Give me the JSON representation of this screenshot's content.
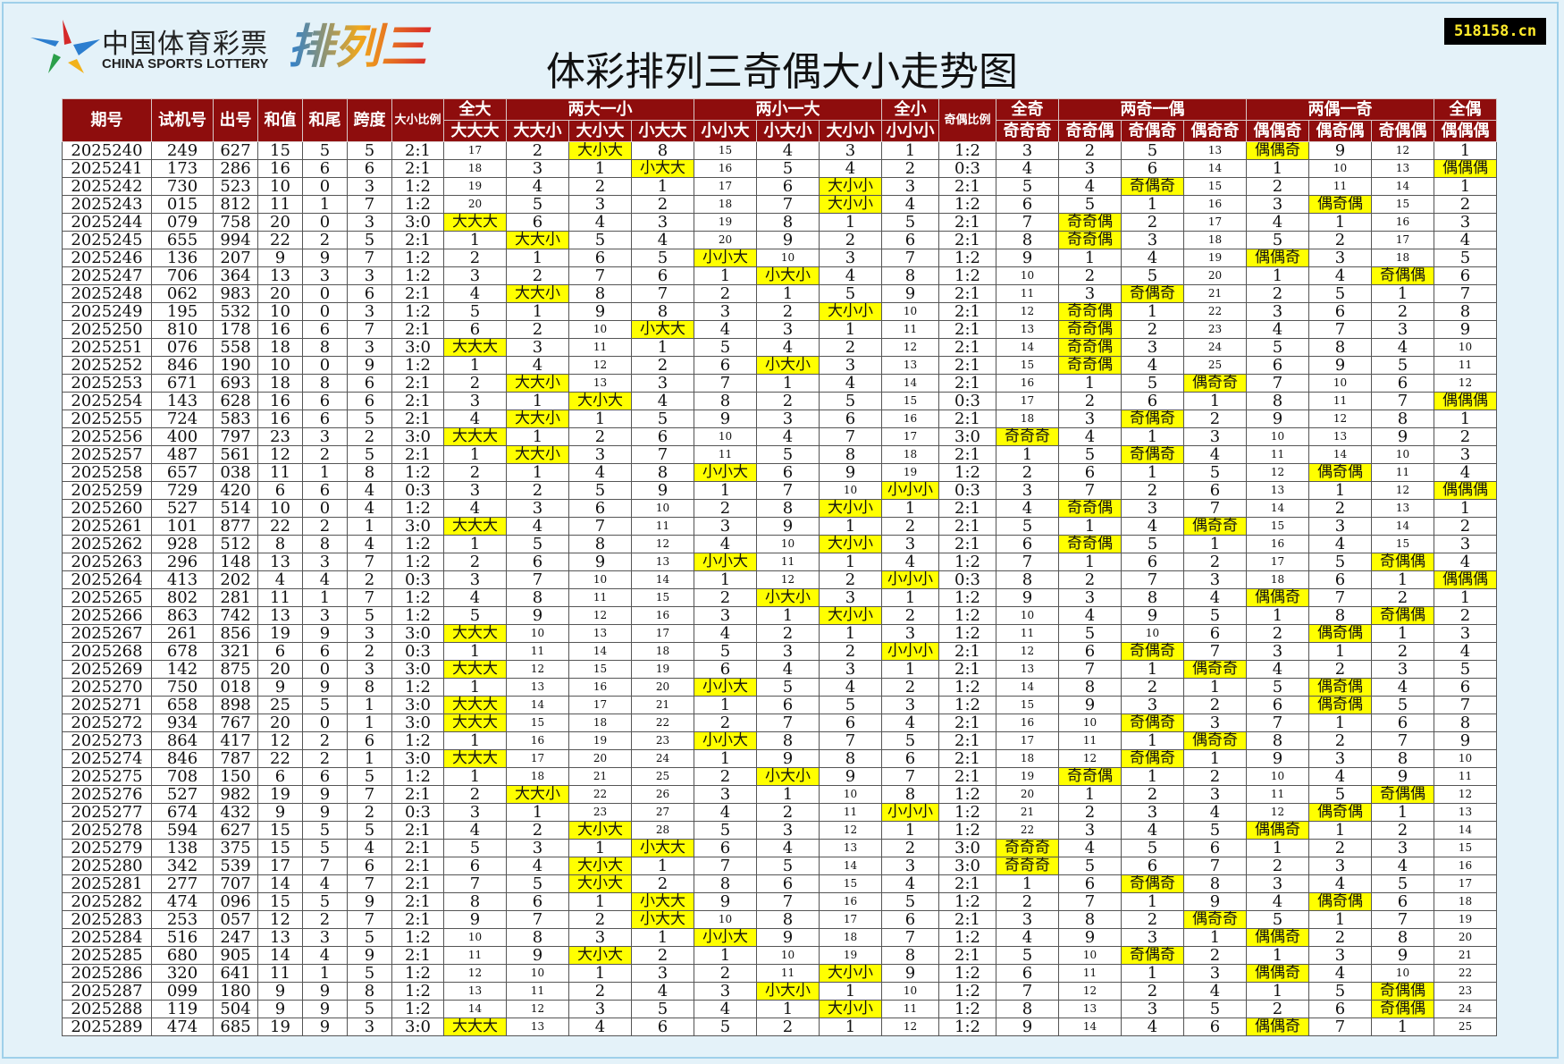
{
  "header": {
    "logo": {
      "cn": "中国体育彩票",
      "en": "CHINA SPORTS LOTTERY",
      "game": "排列三"
    },
    "title": "体彩排列三奇偶大小走势图",
    "site": "518158.cn"
  },
  "table": {
    "header_top": [
      "期号",
      "试机号",
      "出号",
      "和值",
      "和尾",
      "跨度",
      "大小比例",
      "全大",
      "两大一小",
      "两小一大",
      "全小",
      "奇偶比例",
      "全奇",
      "两奇一偶",
      "两偶一奇",
      "全偶"
    ],
    "header_sub": [
      "大大大",
      "大大小",
      "大小大",
      "小大大",
      "小小大",
      "小大小",
      "大小小",
      "小小小",
      "奇奇奇",
      "奇奇偶",
      "奇偶奇",
      "偶奇奇",
      "偶偶奇",
      "偶奇偶",
      "奇偶偶",
      "偶偶偶"
    ],
    "rows": [
      [
        "2025240",
        "249",
        "627",
        "15",
        "5",
        "5",
        "2:1",
        "17",
        "2",
        "大小大",
        "8",
        "15",
        "4",
        "3",
        "1",
        "1:2",
        "3",
        "2",
        "5",
        "13",
        "偶偶奇",
        "9",
        "12",
        "1"
      ],
      [
        "2025241",
        "173",
        "286",
        "16",
        "6",
        "6",
        "2:1",
        "18",
        "3",
        "1",
        "小大大",
        "16",
        "5",
        "4",
        "2",
        "0:3",
        "4",
        "3",
        "6",
        "14",
        "1",
        "10",
        "13",
        "偶偶偶"
      ],
      [
        "2025242",
        "730",
        "523",
        "10",
        "0",
        "3",
        "1:2",
        "19",
        "4",
        "2",
        "1",
        "17",
        "6",
        "大小小",
        "3",
        "2:1",
        "5",
        "4",
        "奇偶奇",
        "15",
        "2",
        "11",
        "14",
        "1"
      ],
      [
        "2025243",
        "015",
        "812",
        "11",
        "1",
        "7",
        "1:2",
        "20",
        "5",
        "3",
        "2",
        "18",
        "7",
        "大小小",
        "4",
        "1:2",
        "6",
        "5",
        "1",
        "16",
        "3",
        "偶奇偶",
        "15",
        "2"
      ],
      [
        "2025244",
        "079",
        "758",
        "20",
        "0",
        "3",
        "3:0",
        "大大大",
        "6",
        "4",
        "3",
        "19",
        "8",
        "1",
        "5",
        "2:1",
        "7",
        "奇奇偶",
        "2",
        "17",
        "4",
        "1",
        "16",
        "3"
      ],
      [
        "2025245",
        "655",
        "994",
        "22",
        "2",
        "5",
        "2:1",
        "1",
        "大大小",
        "5",
        "4",
        "20",
        "9",
        "2",
        "6",
        "2:1",
        "8",
        "奇奇偶",
        "3",
        "18",
        "5",
        "2",
        "17",
        "4"
      ],
      [
        "2025246",
        "136",
        "207",
        "9",
        "9",
        "7",
        "1:2",
        "2",
        "1",
        "6",
        "5",
        "小小大",
        "10",
        "3",
        "7",
        "1:2",
        "9",
        "1",
        "4",
        "19",
        "偶偶奇",
        "3",
        "18",
        "5"
      ],
      [
        "2025247",
        "706",
        "364",
        "13",
        "3",
        "3",
        "1:2",
        "3",
        "2",
        "7",
        "6",
        "1",
        "小大小",
        "4",
        "8",
        "1:2",
        "10",
        "2",
        "5",
        "20",
        "1",
        "4",
        "奇偶偶",
        "6"
      ],
      [
        "2025248",
        "062",
        "983",
        "20",
        "0",
        "6",
        "2:1",
        "4",
        "大大小",
        "8",
        "7",
        "2",
        "1",
        "5",
        "9",
        "2:1",
        "11",
        "3",
        "奇偶奇",
        "21",
        "2",
        "5",
        "1",
        "7"
      ],
      [
        "2025249",
        "195",
        "532",
        "10",
        "0",
        "3",
        "1:2",
        "5",
        "1",
        "9",
        "8",
        "3",
        "2",
        "大小小",
        "10",
        "2:1",
        "12",
        "奇奇偶",
        "1",
        "22",
        "3",
        "6",
        "2",
        "8"
      ],
      [
        "2025250",
        "810",
        "178",
        "16",
        "6",
        "7",
        "2:1",
        "6",
        "2",
        "10",
        "小大大",
        "4",
        "3",
        "1",
        "11",
        "2:1",
        "13",
        "奇奇偶",
        "2",
        "23",
        "4",
        "7",
        "3",
        "9"
      ],
      [
        "2025251",
        "076",
        "558",
        "18",
        "8",
        "3",
        "3:0",
        "大大大",
        "3",
        "11",
        "1",
        "5",
        "4",
        "2",
        "12",
        "2:1",
        "14",
        "奇奇偶",
        "3",
        "24",
        "5",
        "8",
        "4",
        "10"
      ],
      [
        "2025252",
        "846",
        "190",
        "10",
        "0",
        "9",
        "1:2",
        "1",
        "4",
        "12",
        "2",
        "6",
        "小大小",
        "3",
        "13",
        "2:1",
        "15",
        "奇奇偶",
        "4",
        "25",
        "6",
        "9",
        "5",
        "11"
      ],
      [
        "2025253",
        "671",
        "693",
        "18",
        "8",
        "6",
        "2:1",
        "2",
        "大大小",
        "13",
        "3",
        "7",
        "1",
        "4",
        "14",
        "2:1",
        "16",
        "1",
        "5",
        "偶奇奇",
        "7",
        "10",
        "6",
        "12"
      ],
      [
        "2025254",
        "143",
        "628",
        "16",
        "6",
        "6",
        "2:1",
        "3",
        "1",
        "大小大",
        "4",
        "8",
        "2",
        "5",
        "15",
        "0:3",
        "17",
        "2",
        "6",
        "1",
        "8",
        "11",
        "7",
        "偶偶偶"
      ],
      [
        "2025255",
        "724",
        "583",
        "16",
        "6",
        "5",
        "2:1",
        "4",
        "大大小",
        "1",
        "5",
        "9",
        "3",
        "6",
        "16",
        "2:1",
        "18",
        "3",
        "奇偶奇",
        "2",
        "9",
        "12",
        "8",
        "1"
      ],
      [
        "2025256",
        "400",
        "797",
        "23",
        "3",
        "2",
        "3:0",
        "大大大",
        "1",
        "2",
        "6",
        "10",
        "4",
        "7",
        "17",
        "3:0",
        "奇奇奇",
        "4",
        "1",
        "3",
        "10",
        "13",
        "9",
        "2"
      ],
      [
        "2025257",
        "487",
        "561",
        "12",
        "2",
        "5",
        "2:1",
        "1",
        "大大小",
        "3",
        "7",
        "11",
        "5",
        "8",
        "18",
        "2:1",
        "1",
        "5",
        "奇偶奇",
        "4",
        "11",
        "14",
        "10",
        "3"
      ],
      [
        "2025258",
        "657",
        "038",
        "11",
        "1",
        "8",
        "1:2",
        "2",
        "1",
        "4",
        "8",
        "小小大",
        "6",
        "9",
        "19",
        "1:2",
        "2",
        "6",
        "1",
        "5",
        "12",
        "偶奇偶",
        "11",
        "4"
      ],
      [
        "2025259",
        "729",
        "420",
        "6",
        "6",
        "4",
        "0:3",
        "3",
        "2",
        "5",
        "9",
        "1",
        "7",
        "10",
        "小小小",
        "0:3",
        "3",
        "7",
        "2",
        "6",
        "13",
        "1",
        "12",
        "偶偶偶"
      ],
      [
        "2025260",
        "527",
        "514",
        "10",
        "0",
        "4",
        "1:2",
        "4",
        "3",
        "6",
        "10",
        "2",
        "8",
        "大小小",
        "1",
        "2:1",
        "4",
        "奇奇偶",
        "3",
        "7",
        "14",
        "2",
        "13",
        "1"
      ],
      [
        "2025261",
        "101",
        "877",
        "22",
        "2",
        "1",
        "3:0",
        "大大大",
        "4",
        "7",
        "11",
        "3",
        "9",
        "1",
        "2",
        "2:1",
        "5",
        "1",
        "4",
        "偶奇奇",
        "15",
        "3",
        "14",
        "2"
      ],
      [
        "2025262",
        "928",
        "512",
        "8",
        "8",
        "4",
        "1:2",
        "1",
        "5",
        "8",
        "12",
        "4",
        "10",
        "大小小",
        "3",
        "2:1",
        "6",
        "奇奇偶",
        "5",
        "1",
        "16",
        "4",
        "15",
        "3"
      ],
      [
        "2025263",
        "296",
        "148",
        "13",
        "3",
        "7",
        "1:2",
        "2",
        "6",
        "9",
        "13",
        "小小大",
        "11",
        "1",
        "4",
        "1:2",
        "7",
        "1",
        "6",
        "2",
        "17",
        "5",
        "奇偶偶",
        "4"
      ],
      [
        "2025264",
        "413",
        "202",
        "4",
        "4",
        "2",
        "0:3",
        "3",
        "7",
        "10",
        "14",
        "1",
        "12",
        "2",
        "小小小",
        "0:3",
        "8",
        "2",
        "7",
        "3",
        "18",
        "6",
        "1",
        "偶偶偶"
      ],
      [
        "2025265",
        "802",
        "281",
        "11",
        "1",
        "7",
        "1:2",
        "4",
        "8",
        "11",
        "15",
        "2",
        "小大小",
        "3",
        "1",
        "1:2",
        "9",
        "3",
        "8",
        "4",
        "偶偶奇",
        "7",
        "2",
        "1"
      ],
      [
        "2025266",
        "863",
        "742",
        "13",
        "3",
        "5",
        "1:2",
        "5",
        "9",
        "12",
        "16",
        "3",
        "1",
        "大小小",
        "2",
        "1:2",
        "10",
        "4",
        "9",
        "5",
        "1",
        "8",
        "奇偶偶",
        "2"
      ],
      [
        "2025267",
        "261",
        "856",
        "19",
        "9",
        "3",
        "3:0",
        "大大大",
        "10",
        "13",
        "17",
        "4",
        "2",
        "1",
        "3",
        "1:2",
        "11",
        "5",
        "10",
        "6",
        "2",
        "偶奇偶",
        "1",
        "3"
      ],
      [
        "2025268",
        "678",
        "321",
        "6",
        "6",
        "2",
        "0:3",
        "1",
        "11",
        "14",
        "18",
        "5",
        "3",
        "2",
        "小小小",
        "2:1",
        "12",
        "6",
        "奇偶奇",
        "7",
        "3",
        "1",
        "2",
        "4"
      ],
      [
        "2025269",
        "142",
        "875",
        "20",
        "0",
        "3",
        "3:0",
        "大大大",
        "12",
        "15",
        "19",
        "6",
        "4",
        "3",
        "1",
        "2:1",
        "13",
        "7",
        "1",
        "偶奇奇",
        "4",
        "2",
        "3",
        "5"
      ],
      [
        "2025270",
        "750",
        "018",
        "9",
        "9",
        "8",
        "1:2",
        "1",
        "13",
        "16",
        "20",
        "小小大",
        "5",
        "4",
        "2",
        "1:2",
        "14",
        "8",
        "2",
        "1",
        "5",
        "偶奇偶",
        "4",
        "6"
      ],
      [
        "2025271",
        "658",
        "898",
        "25",
        "5",
        "1",
        "3:0",
        "大大大",
        "14",
        "17",
        "21",
        "1",
        "6",
        "5",
        "3",
        "1:2",
        "15",
        "9",
        "3",
        "2",
        "6",
        "偶奇偶",
        "5",
        "7"
      ],
      [
        "2025272",
        "934",
        "767",
        "20",
        "0",
        "1",
        "3:0",
        "大大大",
        "15",
        "18",
        "22",
        "2",
        "7",
        "6",
        "4",
        "2:1",
        "16",
        "10",
        "奇偶奇",
        "3",
        "7",
        "1",
        "6",
        "8"
      ],
      [
        "2025273",
        "864",
        "417",
        "12",
        "2",
        "6",
        "1:2",
        "1",
        "16",
        "19",
        "23",
        "小小大",
        "8",
        "7",
        "5",
        "2:1",
        "17",
        "11",
        "1",
        "偶奇奇",
        "8",
        "2",
        "7",
        "9"
      ],
      [
        "2025274",
        "846",
        "787",
        "22",
        "2",
        "1",
        "3:0",
        "大大大",
        "17",
        "20",
        "24",
        "1",
        "9",
        "8",
        "6",
        "2:1",
        "18",
        "12",
        "奇偶奇",
        "1",
        "9",
        "3",
        "8",
        "10"
      ],
      [
        "2025275",
        "708",
        "150",
        "6",
        "6",
        "5",
        "1:2",
        "1",
        "18",
        "21",
        "25",
        "2",
        "小大小",
        "9",
        "7",
        "2:1",
        "19",
        "奇奇偶",
        "1",
        "2",
        "10",
        "4",
        "9",
        "11"
      ],
      [
        "2025276",
        "527",
        "982",
        "19",
        "9",
        "7",
        "2:1",
        "2",
        "大大小",
        "22",
        "26",
        "3",
        "1",
        "10",
        "8",
        "1:2",
        "20",
        "1",
        "2",
        "3",
        "11",
        "5",
        "奇偶偶",
        "12"
      ],
      [
        "2025277",
        "674",
        "432",
        "9",
        "9",
        "2",
        "0:3",
        "3",
        "1",
        "23",
        "27",
        "4",
        "2",
        "11",
        "小小小",
        "1:2",
        "21",
        "2",
        "3",
        "4",
        "12",
        "偶奇偶",
        "1",
        "13"
      ],
      [
        "2025278",
        "594",
        "627",
        "15",
        "5",
        "5",
        "2:1",
        "4",
        "2",
        "大小大",
        "28",
        "5",
        "3",
        "12",
        "1",
        "1:2",
        "22",
        "3",
        "4",
        "5",
        "偶偶奇",
        "1",
        "2",
        "14"
      ],
      [
        "2025279",
        "138",
        "375",
        "15",
        "5",
        "4",
        "2:1",
        "5",
        "3",
        "1",
        "小大大",
        "6",
        "4",
        "13",
        "2",
        "3:0",
        "奇奇奇",
        "4",
        "5",
        "6",
        "1",
        "2",
        "3",
        "15"
      ],
      [
        "2025280",
        "342",
        "539",
        "17",
        "7",
        "6",
        "2:1",
        "6",
        "4",
        "大小大",
        "1",
        "7",
        "5",
        "14",
        "3",
        "3:0",
        "奇奇奇",
        "5",
        "6",
        "7",
        "2",
        "3",
        "4",
        "16"
      ],
      [
        "2025281",
        "277",
        "707",
        "14",
        "4",
        "7",
        "2:1",
        "7",
        "5",
        "大小大",
        "2",
        "8",
        "6",
        "15",
        "4",
        "2:1",
        "1",
        "6",
        "奇偶奇",
        "8",
        "3",
        "4",
        "5",
        "17"
      ],
      [
        "2025282",
        "474",
        "096",
        "15",
        "5",
        "9",
        "2:1",
        "8",
        "6",
        "1",
        "小大大",
        "9",
        "7",
        "16",
        "5",
        "1:2",
        "2",
        "7",
        "1",
        "9",
        "4",
        "偶奇偶",
        "6",
        "18"
      ],
      [
        "2025283",
        "253",
        "057",
        "12",
        "2",
        "7",
        "2:1",
        "9",
        "7",
        "2",
        "小大大",
        "10",
        "8",
        "17",
        "6",
        "2:1",
        "3",
        "8",
        "2",
        "偶奇奇",
        "5",
        "1",
        "7",
        "19"
      ],
      [
        "2025284",
        "516",
        "247",
        "13",
        "3",
        "5",
        "1:2",
        "10",
        "8",
        "3",
        "1",
        "小小大",
        "9",
        "18",
        "7",
        "1:2",
        "4",
        "9",
        "3",
        "1",
        "偶偶奇",
        "2",
        "8",
        "20"
      ],
      [
        "2025285",
        "680",
        "905",
        "14",
        "4",
        "9",
        "2:1",
        "11",
        "9",
        "大小大",
        "2",
        "1",
        "10",
        "19",
        "8",
        "2:1",
        "5",
        "10",
        "奇偶奇",
        "2",
        "1",
        "3",
        "9",
        "21"
      ],
      [
        "2025286",
        "320",
        "641",
        "11",
        "1",
        "5",
        "1:2",
        "12",
        "10",
        "1",
        "3",
        "2",
        "11",
        "大小小",
        "9",
        "1:2",
        "6",
        "11",
        "1",
        "3",
        "偶偶奇",
        "4",
        "10",
        "22"
      ],
      [
        "2025287",
        "099",
        "180",
        "9",
        "9",
        "8",
        "1:2",
        "13",
        "11",
        "2",
        "4",
        "3",
        "小大小",
        "1",
        "10",
        "1:2",
        "7",
        "12",
        "2",
        "4",
        "1",
        "5",
        "奇偶偶",
        "23"
      ],
      [
        "2025288",
        "119",
        "504",
        "9",
        "9",
        "5",
        "1:2",
        "14",
        "12",
        "3",
        "5",
        "4",
        "1",
        "大小小",
        "11",
        "1:2",
        "8",
        "13",
        "3",
        "5",
        "2",
        "6",
        "奇偶偶",
        "24"
      ],
      [
        "2025289",
        "474",
        "685",
        "19",
        "9",
        "3",
        "3:0",
        "大大大",
        "13",
        "4",
        "6",
        "5",
        "2",
        "1",
        "12",
        "1:2",
        "9",
        "14",
        "4",
        "6",
        "偶偶奇",
        "7",
        "1",
        "25"
      ]
    ]
  }
}
